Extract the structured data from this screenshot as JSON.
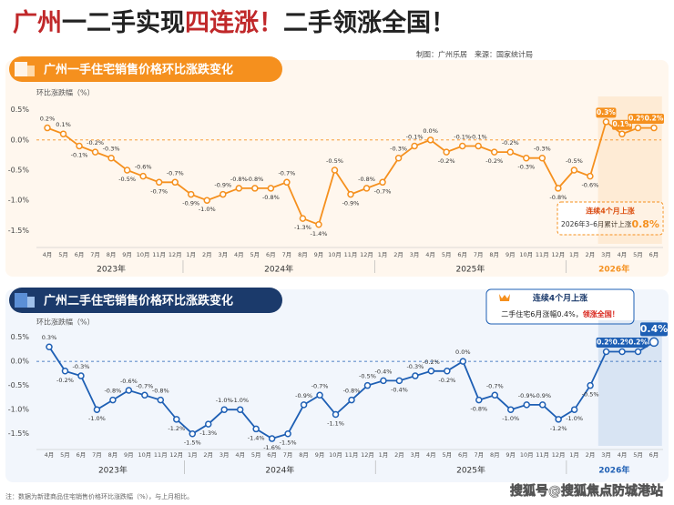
{
  "header": {
    "title_parts": [
      {
        "text": "广州",
        "color": "#c0282a"
      },
      {
        "text": "一二手实现",
        "color": "#222222"
      },
      {
        "text": "四连涨！",
        "color": "#c0282a"
      },
      {
        "text": "二手领涨全国！",
        "color": "#222222"
      }
    ],
    "credit": "制图：广州乐居　来源：国家统计局"
  },
  "chart_data": [
    {
      "type": "line",
      "title": "广州一手住宅销售价格环比涨跌变化",
      "y_label": "环比涨跌幅（%）",
      "color": "#f5901e",
      "categories": [
        "4月",
        "5月",
        "6月",
        "7月",
        "8月",
        "9月",
        "10月",
        "11月",
        "12月",
        "1月",
        "2月",
        "3月",
        "4月",
        "5月",
        "6月",
        "7月",
        "8月",
        "9月",
        "10月",
        "11月",
        "12月",
        "1月",
        "2月",
        "3月",
        "4月",
        "5月",
        "6月",
        "7月",
        "8月",
        "9月",
        "10月",
        "11月",
        "12月",
        "1月",
        "2月",
        "3月",
        "4月",
        "5月",
        "6月"
      ],
      "x_groups": [
        "2023年",
        "2024年",
        "2025年",
        "2026年"
      ],
      "values": [
        0.2,
        0.1,
        -0.1,
        -0.2,
        -0.3,
        -0.5,
        -0.6,
        -0.7,
        -0.7,
        -0.9,
        -1.0,
        -0.9,
        -0.8,
        -0.8,
        -0.8,
        -0.7,
        -1.3,
        -1.4,
        -0.5,
        -0.9,
        -0.8,
        -0.7,
        -0.3,
        -0.1,
        0.0,
        -0.2,
        -0.1,
        -0.1,
        -0.2,
        -0.2,
        -0.3,
        -0.3,
        -0.8,
        -0.5,
        -0.6,
        0.3,
        0.1,
        0.2,
        0.2
      ],
      "value_labels": [
        "0.2%",
        "0.1%",
        "-0.1%",
        "-0.2%",
        "-0.3%",
        "-0.5%",
        "-0.6%",
        "-0.7%",
        "-0.7%",
        "-0.9%",
        "-1.0%",
        "-0.9%",
        "-0.8%",
        "-0.8%",
        "-0.8%",
        "-0.7%",
        "-1.3%",
        "-1.4%",
        "-0.5%",
        "-0.9%",
        "-0.8%",
        "-0.7%",
        "-0.3%",
        "-0.1%",
        "0.0%",
        "-0.2%",
        "-0.1%",
        "-0.1%",
        "-0.2%",
        "-0.2%",
        "-0.3%",
        "-0.3%",
        "-0.8%",
        "-0.5%",
        "-0.6%",
        "0.3%",
        "0.1%",
        "0.2%",
        "0.2%"
      ],
      "highlight_points": [
        35,
        36,
        37,
        38
      ],
      "ylim": [
        -1.72,
        0.6
      ],
      "yticks": [
        {
          "value": 0.5,
          "label": "0.5%"
        },
        {
          "value": 0,
          "label": "0.0%"
        },
        {
          "value": -0.5,
          "label": "-0.5%"
        },
        {
          "value": -1.0,
          "label": "-1.0%"
        },
        {
          "value": -1.5,
          "label": "-1.5%"
        }
      ],
      "annotation": {
        "title": "连续4个月上涨",
        "text": "2026年3–6月累计上涨",
        "emphasis": "0.8%"
      }
    },
    {
      "type": "line",
      "title": "广州二手住宅销售价格环比涨跌变化",
      "y_label": "环比涨跌幅（%）",
      "color": "#1e5fb4",
      "categories": [
        "4月",
        "5月",
        "6月",
        "7月",
        "8月",
        "9月",
        "10月",
        "11月",
        "12月",
        "1月",
        "2月",
        "3月",
        "4月",
        "5月",
        "6月",
        "7月",
        "8月",
        "9月",
        "10月",
        "11月",
        "12月",
        "1月",
        "2月",
        "3月",
        "4月",
        "5月",
        "6月",
        "7月",
        "8月",
        "9月",
        "10月",
        "11月",
        "12月",
        "1月",
        "2月",
        "3月",
        "4月",
        "5月",
        "6月"
      ],
      "x_groups": [
        "2023年",
        "2024年",
        "2025年",
        "2026年"
      ],
      "values": [
        0.3,
        -0.2,
        -0.3,
        -1.0,
        -0.8,
        -0.6,
        -0.7,
        -0.8,
        -1.2,
        -1.5,
        -1.3,
        -1.0,
        -1.0,
        -1.4,
        -1.6,
        -1.5,
        -0.9,
        -0.7,
        -1.1,
        -0.8,
        -0.5,
        -0.4,
        -0.4,
        -0.3,
        -0.2,
        -0.2,
        0.0,
        -0.8,
        -0.7,
        -1.0,
        -0.9,
        -0.9,
        -1.2,
        -1.0,
        -0.5,
        0.2,
        0.2,
        0.2,
        0.4
      ],
      "value_labels": [
        "0.3%",
        "-0.2%",
        "-0.3%",
        "-1.0%",
        "-0.8%",
        "-0.6%",
        "-0.7%",
        "-0.8%",
        "-1.2%",
        "-1.5%",
        "-1.3%",
        "-1.0%",
        "-1.0%",
        "-1.4%",
        "-1.6%",
        "-1.5%",
        "-0.9%",
        "-0.7%",
        "-1.1%",
        "-0.8%",
        "-0.5%",
        "-0.4%",
        "-0.4%",
        "-0.3%",
        "-0.2%",
        "-0.2%",
        "0.0%",
        "-0.8%",
        "-0.7%",
        "-1.0%",
        "-0.9%",
        "-0.9%",
        "-1.2%",
        "-1.0%",
        "-0.5%",
        "0.2%",
        "0.2%",
        "0.2%",
        "0.4%"
      ],
      "highlight_points": [
        35,
        36,
        37,
        38
      ],
      "ylim": [
        -1.75,
        0.7
      ],
      "yticks": [
        {
          "value": 0.5,
          "label": "0.5%"
        },
        {
          "value": 0,
          "label": "0.0%"
        },
        {
          "value": -0.5,
          "label": "-0.5%"
        },
        {
          "value": -1.0,
          "label": "-1.0%"
        },
        {
          "value": -1.5,
          "label": "-1.5%"
        }
      ],
      "annotation": {
        "title": "连续4个月上涨",
        "text": "二手住宅6月涨幅0.4%，",
        "emphasis": "领涨全国！"
      }
    }
  ],
  "footer": {
    "note": "注：数据为新建商品住宅销售价格环比涨跌幅（%），与上月相比。",
    "watermark": "搜狐号@搜狐焦点防城港站"
  }
}
